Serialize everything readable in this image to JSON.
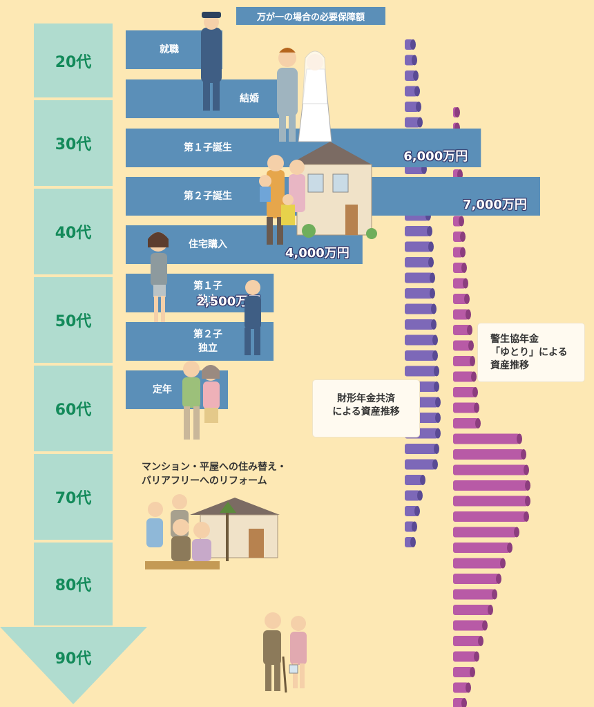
{
  "header": {
    "title": "万が一の場合の必要保障額"
  },
  "ages": [
    "20代",
    "30代",
    "40代",
    "50代",
    "60代",
    "70代",
    "80代",
    "90代"
  ],
  "events": [
    {
      "label": "就職"
    },
    {
      "label": "結婚"
    },
    {
      "label": "第１子誕生"
    },
    {
      "label": "第２子誕生"
    },
    {
      "label": "住宅購入"
    },
    {
      "label": "第１子\n独立"
    },
    {
      "label": "第２子\n独立"
    },
    {
      "label": "定年"
    }
  ],
  "chart_data": {
    "type": "bar",
    "title": "万が一の場合の必要保障額",
    "orientation": "horizontal",
    "unit": "万円",
    "categories": [
      "就職",
      "結婚",
      "第１子誕生",
      "第２子誕生",
      "住宅購入",
      "第１子独立",
      "第２子独立",
      "定年"
    ],
    "series": [
      {
        "values": [
          null,
          null,
          6000,
          7000,
          4000,
          2500,
          null,
          null
        ],
        "data_labels": [
          "",
          "",
          "6,000万円",
          "7,000万円",
          "4,000万円",
          "2,500万円",
          "",
          ""
        ]
      }
    ],
    "asset_series": [
      {
        "name": "財形年金共済による資産推移",
        "color": "#7d68b8"
      },
      {
        "name": "警生協年金「ゆとり」による資産推移",
        "color": "#b85aa6"
      }
    ]
  },
  "notes": {
    "zaikei": "財形年金共済\nによる資産推移",
    "yutori": "警生協年金\n「ゆとり」による\n資産推移"
  },
  "reform": "マンション・平屋への住み替え・\nバリアフリーへのリフォーム",
  "colors": {
    "background": "#fde8b4",
    "age_box": "#b0dccf",
    "age_text": "#138a5a",
    "bar": "#5b8fb8",
    "zaikei": "#7d68b8",
    "yutori": "#b85aa6"
  }
}
